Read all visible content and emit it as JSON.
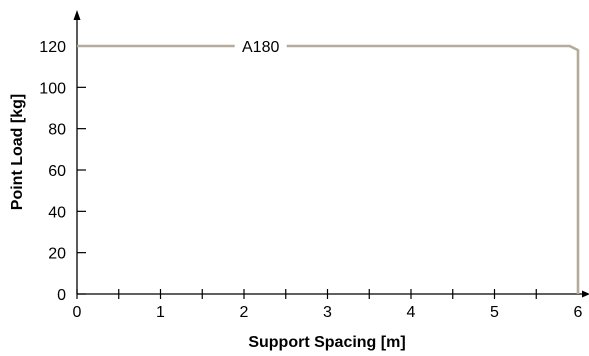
{
  "chart_data": {
    "type": "line",
    "xlabel": "Support Spacing [m]",
    "ylabel": "Point Load [kg]",
    "xlim": [
      0,
      6
    ],
    "ylim": [
      0,
      120
    ],
    "x_ticks": [
      {
        "value": 0,
        "label": "0"
      },
      {
        "value": 1,
        "label": "1"
      },
      {
        "value": 2,
        "label": "2"
      },
      {
        "value": 3,
        "label": "3"
      },
      {
        "value": 4,
        "label": "4"
      },
      {
        "value": 5,
        "label": "5"
      },
      {
        "value": 6,
        "label": "6"
      }
    ],
    "x_minor_ticks": [
      0.5,
      1.5,
      2.5,
      3.5,
      4.5,
      5.5
    ],
    "y_ticks": [
      {
        "value": 0,
        "label": "0"
      },
      {
        "value": 20,
        "label": "20"
      },
      {
        "value": 40,
        "label": "40"
      },
      {
        "value": 60,
        "label": "60"
      },
      {
        "value": 80,
        "label": "80"
      },
      {
        "value": 100,
        "label": "100"
      },
      {
        "value": 120,
        "label": "120"
      }
    ],
    "grid": false,
    "series": [
      {
        "name": "A180",
        "color": "#b5ab9b",
        "label_at_x": 2.2,
        "points": [
          [
            0,
            120
          ],
          [
            5.9,
            120
          ],
          [
            6.0,
            118
          ],
          [
            6.0,
            0
          ]
        ]
      }
    ]
  }
}
